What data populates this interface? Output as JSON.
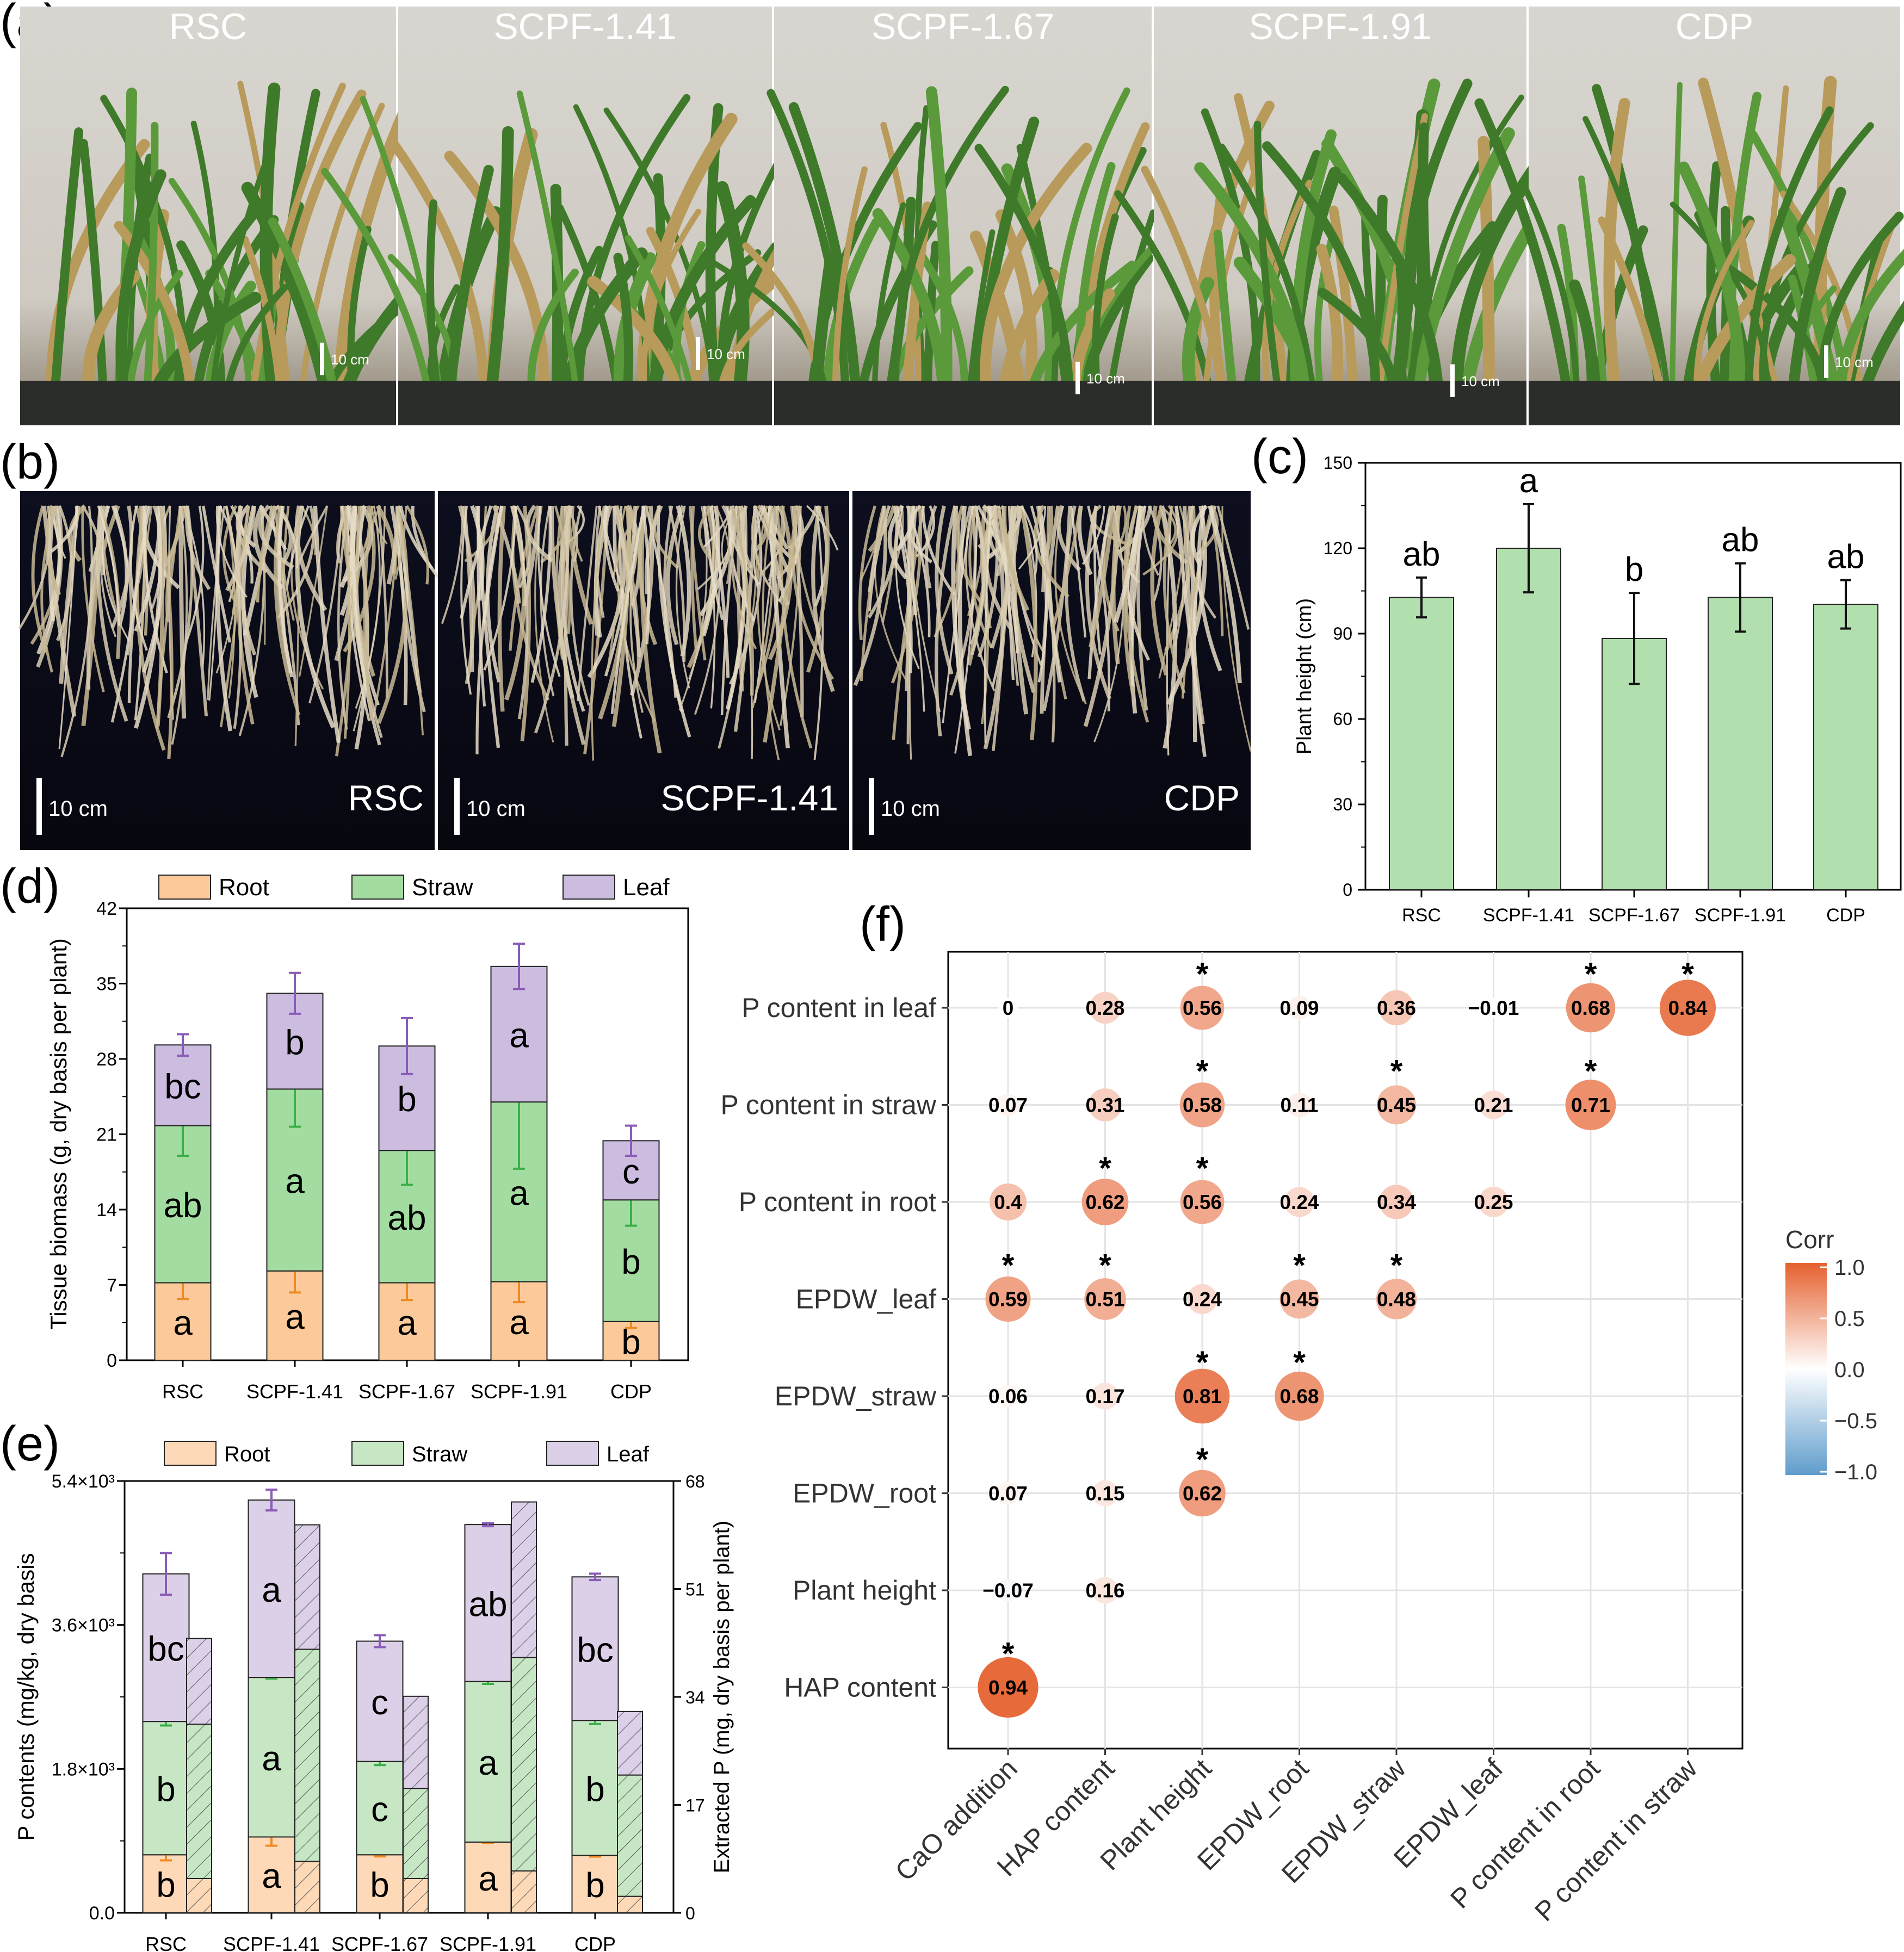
{
  "panel_labels": [
    "(a)",
    "(b)",
    "(c)",
    "(d)",
    "(e)",
    "(f)"
  ],
  "photos_a": {
    "labels": [
      "RSC",
      "SCPF-1.41",
      "SCPF-1.67",
      "SCPF-1.91",
      "CDP"
    ],
    "scale_bar": "10 cm"
  },
  "photos_b": {
    "labels": [
      "RSC",
      "SCPF-1.41",
      "CDP"
    ],
    "scale_bar": "10 cm"
  },
  "colors": {
    "bar_green": "#b1dfae",
    "root": "#fbc99a",
    "straw": "#a3dca0",
    "leaf": "#cbbce0",
    "root_err": "#f08a24",
    "straw_err": "#3bb04a",
    "leaf_err": "#8a5cb8",
    "corr_pos": "#e5612f",
    "corr_neg": "#5f9ccc"
  },
  "chart_data": [
    {
      "id": "c",
      "type": "bar",
      "categories": [
        "RSC",
        "SCPF-1.41",
        "SCPF-1.67",
        "SCPF-1.91",
        "CDP"
      ],
      "values": [
        102.7,
        120,
        88.3,
        102.7,
        100.3
      ],
      "errors": [
        7,
        15.5,
        16,
        12,
        8.5
      ],
      "letters": [
        "ab",
        "a",
        "b",
        "ab",
        "ab"
      ],
      "ylabel": "Plant height (cm)",
      "ylim": [
        0,
        150
      ],
      "yticks": [
        "0",
        "30",
        "60",
        "90",
        "120",
        "150"
      ]
    },
    {
      "id": "d",
      "type": "bar",
      "stacked": true,
      "categories": [
        "RSC",
        "SCPF-1.41",
        "SCPF-1.67",
        "SCPF-1.91",
        "CDP"
      ],
      "series": [
        {
          "name": "Root",
          "values": [
            7.2,
            8.3,
            7.2,
            7.3,
            3.6
          ],
          "errors": [
            1.5,
            2,
            1.6,
            1.9,
            0.6
          ],
          "letters": [
            "a",
            "a",
            "a",
            "a",
            "b"
          ]
        },
        {
          "name": "Straw",
          "values": [
            14.6,
            16.9,
            12.3,
            16.7,
            11.3
          ],
          "errors": [
            2.8,
            3.5,
            3.2,
            6.2,
            2.4
          ],
          "letters": [
            "ab",
            "a",
            "ab",
            "a",
            "b"
          ]
        },
        {
          "name": "Leaf",
          "values": [
            7.5,
            8.9,
            9.7,
            12.6,
            5.5
          ],
          "errors": [
            1,
            1.9,
            2.6,
            2.1,
            1.4
          ],
          "letters": [
            "bc",
            "b",
            "b",
            "a",
            "c"
          ]
        }
      ],
      "ylabel": "Tissue biomass (g, dry basis per plant)",
      "ylim": [
        0,
        42
      ],
      "yticks": [
        "0",
        "7",
        "14",
        "21",
        "28",
        "35",
        "42"
      ]
    },
    {
      "id": "e",
      "type": "bar",
      "stacked": true,
      "dual_axis": true,
      "categories": [
        "RSC",
        "SCPF-1.41",
        "SCPF-1.67",
        "SCPF-1.91",
        "CDP"
      ],
      "series": [
        {
          "name": "Root",
          "values": [
            726,
            949,
            726,
            885,
            718
          ],
          "errors": [
            70,
            110,
            20,
            10,
            15
          ],
          "letters": [
            "b",
            "a",
            "b",
            "a",
            "b"
          ]
        },
        {
          "name": "Straw",
          "values": [
            1667,
            1995,
            1167,
            2008,
            1688
          ],
          "errors": [
            50,
            15,
            45,
            30,
            45
          ],
          "letters": [
            "b",
            "a",
            "c",
            "a",
            "b"
          ]
        },
        {
          "name": "Leaf",
          "values": [
            1846,
            2218,
            1504,
            1962,
            1795
          ],
          "errors": [
            260,
            130,
            75,
            20,
            40
          ],
          "letters": [
            "bc",
            "a",
            "c",
            "ab",
            "bc"
          ]
        }
      ],
      "secondary_series": [
        {
          "name": "Root",
          "values": [
            5.4,
            8.1,
            5.4,
            6.6,
            2.6
          ]
        },
        {
          "name": "Straw",
          "values": [
            24.3,
            33.4,
            14.2,
            33.6,
            19.1
          ]
        },
        {
          "name": "Leaf",
          "values": [
            13.5,
            19.6,
            14.5,
            24.5,
            10.0
          ]
        }
      ],
      "ylabel": "P contents (mg/kg, dry basis",
      "ylim": [
        0,
        5400
      ],
      "yticks": [
        "0.0",
        "1.8×10³",
        "3.6×10³",
        "5.4×10³"
      ],
      "y2label": "Extracted P (mg, dry basis per plant)",
      "y2lim": [
        0,
        68
      ],
      "y2ticks": [
        "0",
        "17",
        "34",
        "51",
        "68"
      ]
    },
    {
      "id": "f",
      "type": "heatmap",
      "rows": [
        "P content in leaf",
        "P content in straw",
        "P content in root",
        "EPDW_leaf",
        "EPDW_straw",
        "EPDW_root",
        "Plant height",
        "HAP content"
      ],
      "columns": [
        "CaO addition",
        "HAP content",
        "Plant height",
        "EPDW_root",
        "EPDW_straw",
        "EPDW_leaf",
        "P content in root",
        "P content in straw"
      ],
      "values": [
        [
          "0",
          "0.28",
          "0.56",
          "0.09",
          "0.36",
          "−0.01",
          "0.68",
          "0.84"
        ],
        [
          "0.07",
          "0.31",
          "0.58",
          "0.11",
          "0.45",
          "0.21",
          "0.71"
        ],
        [
          "0.4",
          "0.62",
          "0.56",
          "0.24",
          "0.34",
          "0.25"
        ],
        [
          "0.59",
          "0.51",
          "0.24",
          "0.45",
          "0.48"
        ],
        [
          "0.06",
          "0.17",
          "0.81",
          "0.68"
        ],
        [
          "0.07",
          "0.15",
          "0.62"
        ],
        [
          "−0.07",
          "0.16"
        ],
        [
          "0.94"
        ]
      ],
      "significant": [
        [
          false,
          false,
          true,
          false,
          false,
          false,
          true,
          true
        ],
        [
          false,
          false,
          true,
          false,
          true,
          false,
          true
        ],
        [
          false,
          true,
          true,
          false,
          false,
          false
        ],
        [
          true,
          true,
          false,
          true,
          true
        ],
        [
          false,
          false,
          true,
          true
        ],
        [
          false,
          false,
          true
        ],
        [
          false,
          false
        ],
        [
          true
        ]
      ],
      "significance_mark": "*",
      "legend": {
        "title": "Corr",
        "ticks": [
          "1.0",
          "0.5",
          "0.0",
          "−0.5",
          "−1.0"
        ],
        "range": [
          -1,
          1
        ]
      }
    }
  ]
}
